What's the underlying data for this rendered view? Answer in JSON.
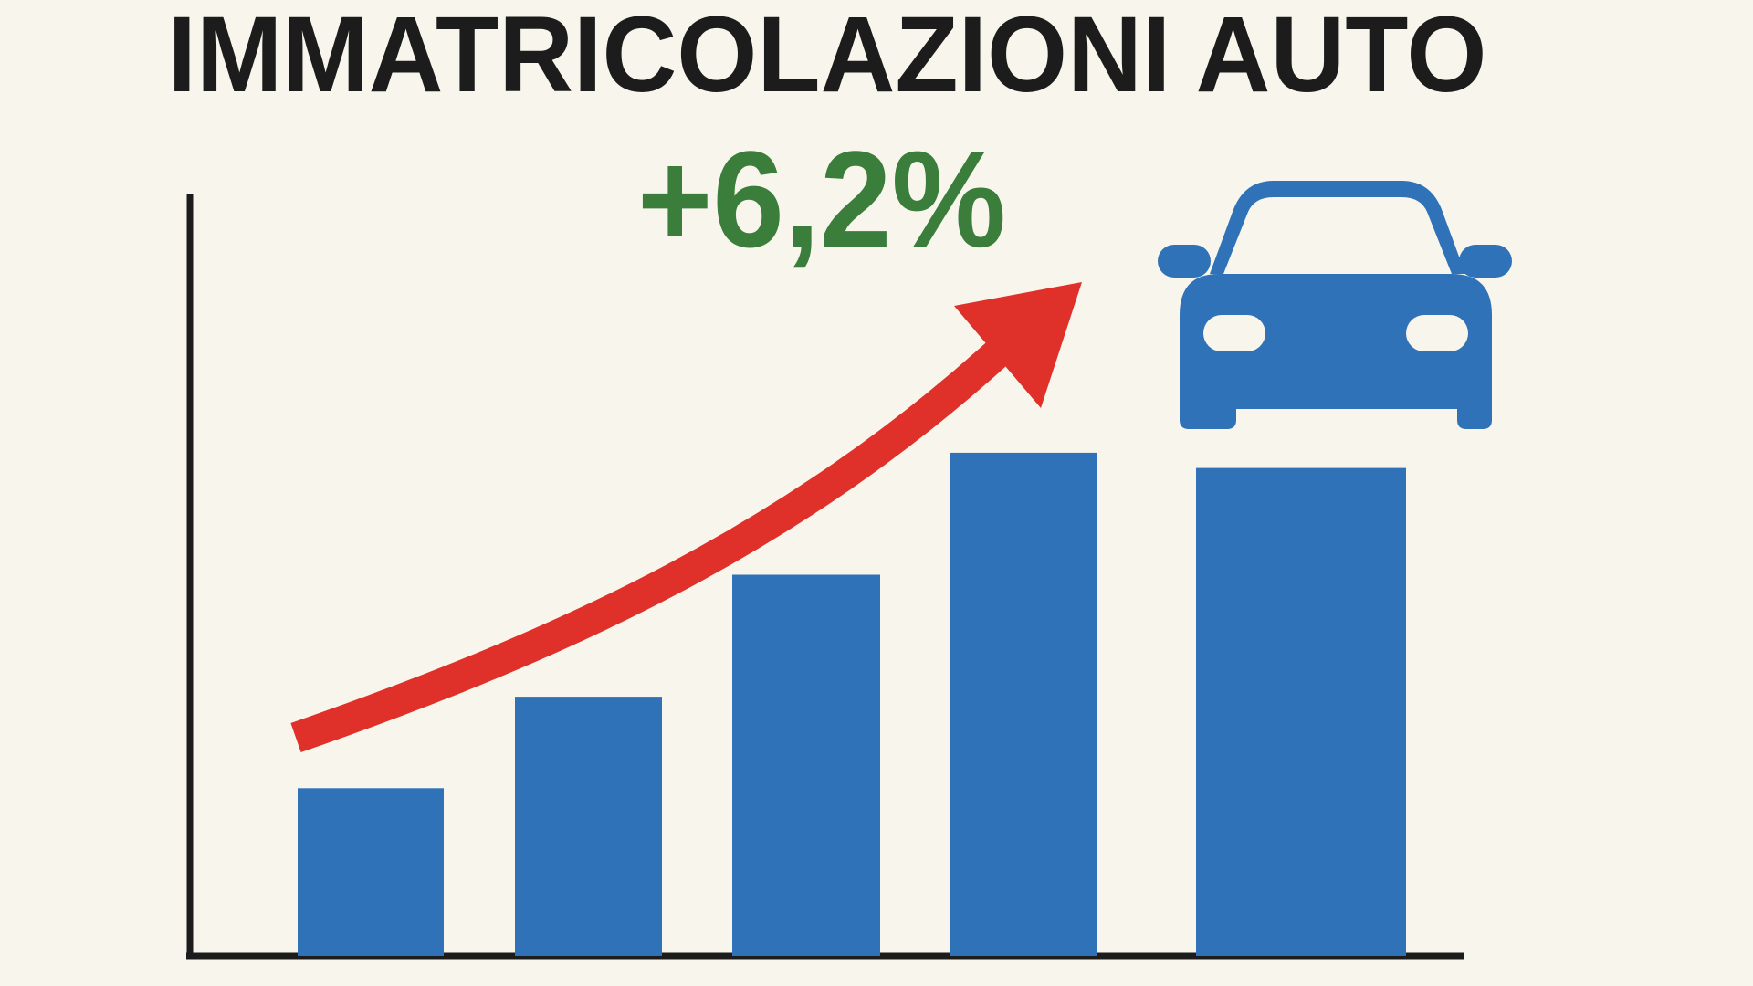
{
  "chart_data": {
    "type": "bar",
    "title": "IMMATRICOLAZIONI AUTO",
    "annotation": "+6,2%",
    "categories": [
      null,
      null,
      null,
      null,
      null
    ],
    "values": [
      22,
      34,
      50,
      66,
      64
    ],
    "color": "#2f72b8",
    "ylim": [
      0,
      100
    ]
  }
}
